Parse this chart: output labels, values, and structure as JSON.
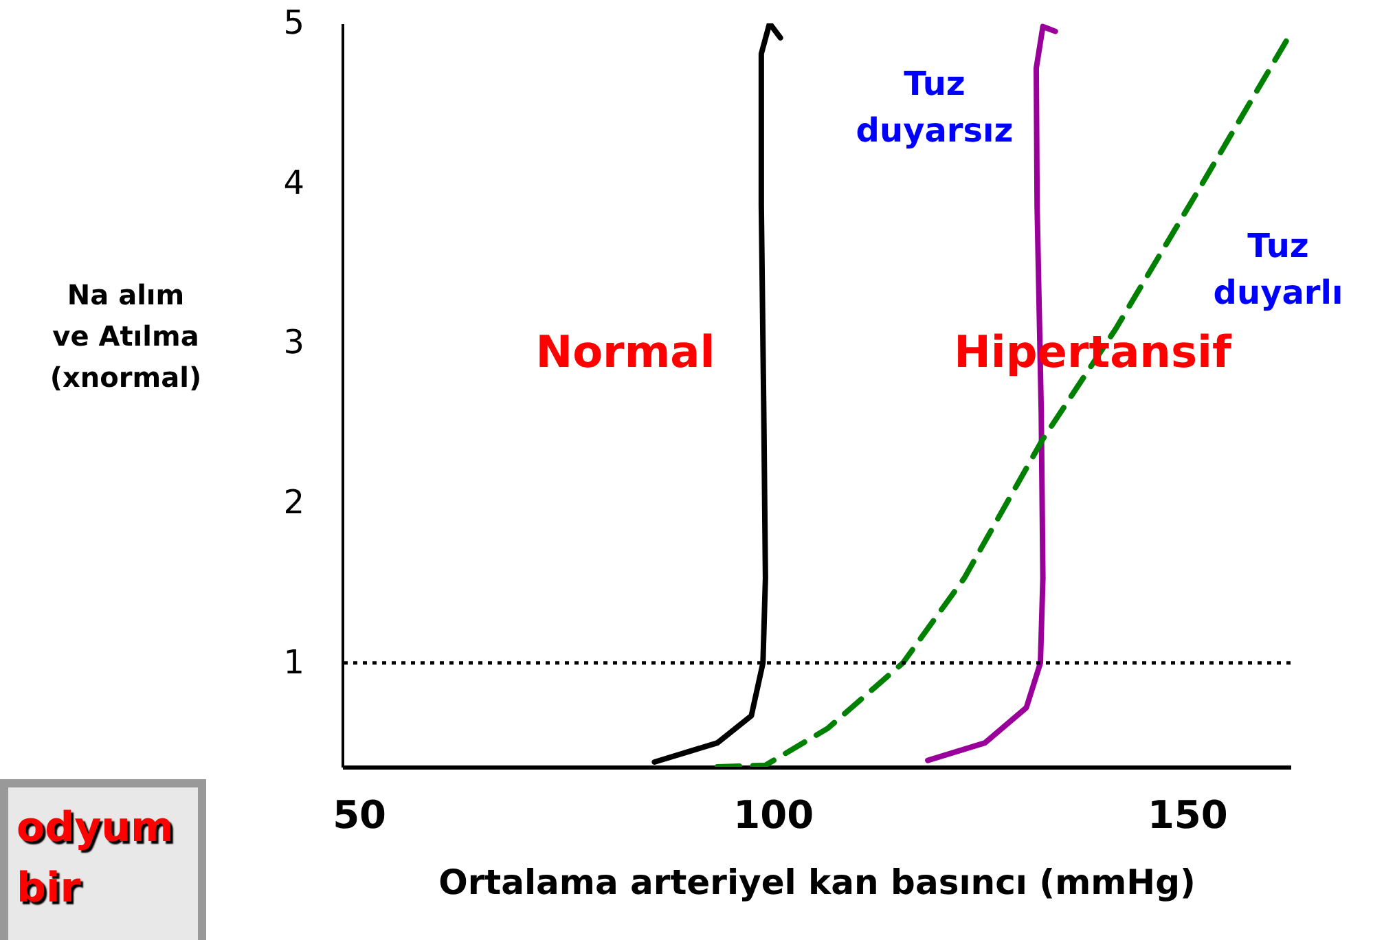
{
  "chart_data": {
    "type": "line",
    "xlabel": "Ortalama arteriyel kan basıncı (mmHg)",
    "ylabel": "Na alım\nve Atılma\n(xnormal)",
    "xlim": [
      48,
      162.5
    ],
    "xticks": [
      50,
      100,
      150
    ],
    "ylim": [
      0.35,
      5
    ],
    "yticks": [
      1,
      2,
      3,
      4,
      5
    ],
    "grid": false,
    "series": [
      {
        "color": "#000000",
        "x": [
          85.7,
          93.3,
          97.4,
          98.8,
          99.1,
          98.9,
          98.6,
          98.6,
          99.6,
          100.9
        ],
        "values": [
          0.38,
          0.5,
          0.67,
          1.0,
          1.53,
          2.57,
          3.86,
          4.81,
          5.0,
          4.91
        ]
      },
      {
        "color": "#990099",
        "x": [
          118.7,
          125.6,
          130.6,
          132.3,
          132.6,
          132.4,
          131.9,
          131.8,
          132.6,
          134.1
        ],
        "values": [
          0.39,
          0.5,
          0.72,
          1.0,
          1.53,
          2.57,
          3.86,
          4.72,
          4.98,
          4.95
        ]
      },
      {
        "color": "#008000",
        "line_style": "dashed",
        "x": [
          93.3,
          99.1,
          106.6,
          115.7,
          123.1,
          132.6,
          141.4,
          151.3,
          162.1
        ],
        "values": [
          0.35,
          0.36,
          0.59,
          1.0,
          1.53,
          2.4,
          3.09,
          3.95,
          4.9
        ]
      }
    ],
    "ref_lines": [
      {
        "axis": "y",
        "value": 1,
        "line_style": "dotted"
      }
    ],
    "annotations": [
      "Normal",
      "Hipertansif",
      "Tuz\nduyarsız",
      "Tuz\nduyarlı",
      "odyum\nbir"
    ]
  }
}
